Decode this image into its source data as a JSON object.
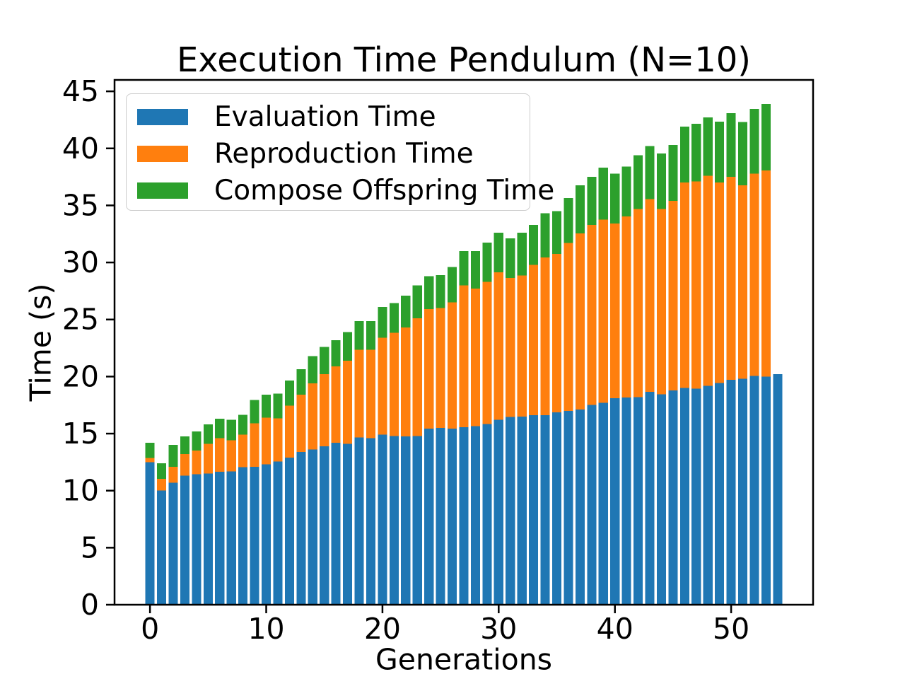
{
  "figure": {
    "background_color": "#ffffff",
    "text_color": "#000000",
    "axis_color": "#000000",
    "legend_border_color": "#cccccc"
  },
  "chart_data": {
    "type": "bar",
    "stacked": true,
    "title": "Execution Time Pendulum (N=10)",
    "xlabel": "Generations",
    "ylabel": "Time (s)",
    "grid": false,
    "legend_position": "upper left",
    "xlim": [
      -3.05,
      57.05
    ],
    "ylim": [
      0,
      46.0
    ],
    "x_ticks": [
      0,
      10,
      20,
      30,
      40,
      50
    ],
    "y_ticks": [
      0,
      5,
      10,
      15,
      20,
      25,
      30,
      35,
      40,
      45
    ],
    "bar_width": 0.8,
    "x": [
      0,
      1,
      2,
      3,
      4,
      5,
      6,
      7,
      8,
      9,
      10,
      11,
      12,
      13,
      14,
      15,
      16,
      17,
      18,
      19,
      20,
      21,
      22,
      23,
      24,
      25,
      26,
      27,
      28,
      29,
      30,
      31,
      32,
      33,
      34,
      35,
      36,
      37,
      38,
      39,
      40,
      41,
      42,
      43,
      44,
      45,
      46,
      47,
      48,
      49,
      50,
      51,
      52,
      53,
      54
    ],
    "series": [
      {
        "name": "Evaluation Time",
        "color": "#1f77b4",
        "values": [
          12.5,
          10.0,
          10.7,
          11.3,
          11.45,
          11.5,
          11.65,
          11.7,
          12.05,
          12.1,
          12.3,
          12.55,
          12.9,
          13.4,
          13.6,
          13.9,
          14.2,
          14.1,
          14.65,
          14.6,
          14.9,
          14.8,
          14.75,
          14.8,
          15.45,
          15.5,
          15.45,
          15.55,
          15.65,
          15.85,
          16.2,
          16.45,
          16.5,
          16.6,
          16.6,
          16.85,
          17.0,
          17.1,
          17.5,
          17.7,
          18.1,
          18.15,
          18.2,
          18.65,
          18.45,
          18.8,
          19.0,
          18.95,
          19.2,
          19.45,
          19.7,
          19.8,
          20.05,
          20.0,
          20.2
        ]
      },
      {
        "name": "Reproduction Time",
        "color": "#ff7f0e",
        "values": [
          0.35,
          1.05,
          1.4,
          1.9,
          2.05,
          2.6,
          2.95,
          2.7,
          2.85,
          3.8,
          4.1,
          3.8,
          4.55,
          5.0,
          5.8,
          6.3,
          6.7,
          7.3,
          7.7,
          7.75,
          8.5,
          9.05,
          9.55,
          10.3,
          10.45,
          10.5,
          11.05,
          12.45,
          12.05,
          12.45,
          12.95,
          12.2,
          12.35,
          13.2,
          13.85,
          13.9,
          14.7,
          15.45,
          15.8,
          16.05,
          15.3,
          15.9,
          16.5,
          16.9,
          16.25,
          16.6,
          18.0,
          18.15,
          18.4,
          17.55,
          17.8,
          16.95,
          17.75,
          18.05,
          0.0
        ]
      },
      {
        "name": "Compose Offspring Time",
        "color": "#2ca02c",
        "values": [
          1.35,
          1.35,
          1.9,
          1.55,
          1.7,
          1.7,
          1.7,
          1.8,
          1.75,
          2.05,
          2.0,
          2.15,
          2.2,
          2.25,
          2.4,
          2.4,
          2.3,
          2.5,
          2.5,
          2.5,
          2.7,
          2.6,
          2.8,
          2.9,
          2.9,
          2.9,
          3.1,
          3.0,
          3.3,
          3.45,
          3.45,
          3.45,
          3.75,
          3.5,
          3.85,
          3.75,
          3.95,
          4.2,
          4.2,
          4.55,
          4.4,
          4.35,
          4.7,
          4.65,
          4.85,
          4.9,
          4.9,
          5.05,
          5.1,
          5.35,
          5.6,
          5.55,
          5.65,
          5.85,
          0.0
        ]
      }
    ]
  }
}
